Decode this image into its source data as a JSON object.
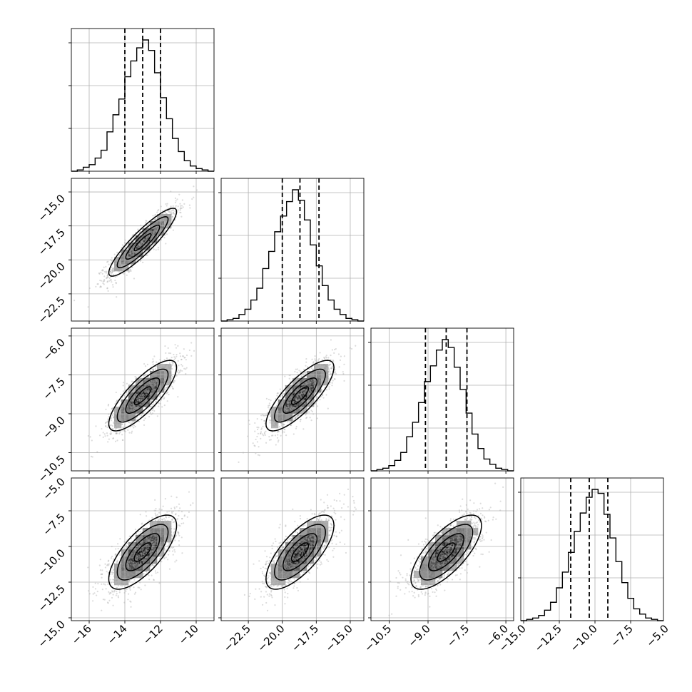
{
  "chart_data": {
    "type": "corner",
    "n_params": 4,
    "grid": true,
    "params": [
      {
        "range": [
          -17.0,
          -9.0
        ],
        "mean": -13.0,
        "sd": 0.95,
        "quantiles": [
          -14.0,
          -13.0,
          -12.0
        ],
        "ticks": [
          -16,
          -14,
          -12,
          -10
        ],
        "tick_labels": [
          "−16",
          "−14",
          "−12",
          "−10"
        ]
      },
      {
        "range": [
          -24.5,
          -14.0
        ],
        "mean": -18.7,
        "sd": 1.25,
        "quantiles": [
          -20.0,
          -18.7,
          -17.3
        ],
        "ticks": [
          -22.5,
          -20.0,
          -17.5,
          -15.0
        ],
        "tick_labels": [
          "−22.5",
          "−20.0",
          "−17.5",
          "−15.0"
        ]
      },
      {
        "range": [
          -11.2,
          -5.7
        ],
        "mean": -8.3,
        "sd": 0.68,
        "quantiles": [
          -9.1,
          -8.3,
          -7.5
        ],
        "ticks": [
          -10.5,
          -9.0,
          -7.5,
          -6.0
        ],
        "tick_labels": [
          "−10.5",
          "−9.0",
          "−7.5",
          "−6.0"
        ]
      },
      {
        "range": [
          -15.2,
          -5.2
        ],
        "mean": -10.4,
        "sd": 1.3,
        "quantiles": [
          -11.7,
          -10.4,
          -9.1
        ],
        "ticks": [
          -15.0,
          -12.5,
          -10.0,
          -7.5,
          -5.0
        ],
        "tick_labels": [
          "−15.0",
          "−12.5",
          "−10.0",
          "−7.5",
          "−5.0"
        ]
      }
    ],
    "correlations": [
      [
        1.0,
        0.9,
        0.8,
        0.72
      ],
      [
        0.9,
        1.0,
        0.8,
        0.72
      ],
      [
        0.8,
        0.8,
        1.0,
        0.72
      ],
      [
        0.72,
        0.72,
        0.72,
        1.0
      ]
    ],
    "histograms": [
      [
        0.0,
        0.01,
        0.03,
        0.05,
        0.1,
        0.16,
        0.3,
        0.43,
        0.55,
        0.72,
        0.84,
        0.94,
        1.0,
        0.92,
        0.75,
        0.56,
        0.4,
        0.25,
        0.15,
        0.08,
        0.04,
        0.02,
        0.01,
        0.0
      ],
      [
        0.0,
        0.01,
        0.02,
        0.05,
        0.09,
        0.16,
        0.25,
        0.4,
        0.53,
        0.68,
        0.8,
        0.91,
        1.0,
        0.92,
        0.77,
        0.58,
        0.42,
        0.27,
        0.16,
        0.09,
        0.05,
        0.02,
        0.01,
        0.0
      ],
      [
        0.0,
        0.01,
        0.02,
        0.04,
        0.08,
        0.14,
        0.26,
        0.37,
        0.52,
        0.68,
        0.8,
        0.92,
        1.0,
        0.94,
        0.79,
        0.62,
        0.44,
        0.28,
        0.17,
        0.09,
        0.05,
        0.02,
        0.01,
        0.0
      ],
      [
        0.0,
        0.01,
        0.02,
        0.04,
        0.08,
        0.14,
        0.25,
        0.37,
        0.52,
        0.68,
        0.82,
        0.94,
        1.0,
        0.97,
        0.81,
        0.63,
        0.45,
        0.29,
        0.17,
        0.09,
        0.05,
        0.02,
        0.01,
        0.0
      ]
    ],
    "contour_levels_sigma": [
      0.5,
      1.0,
      1.5,
      2.0
    ]
  }
}
